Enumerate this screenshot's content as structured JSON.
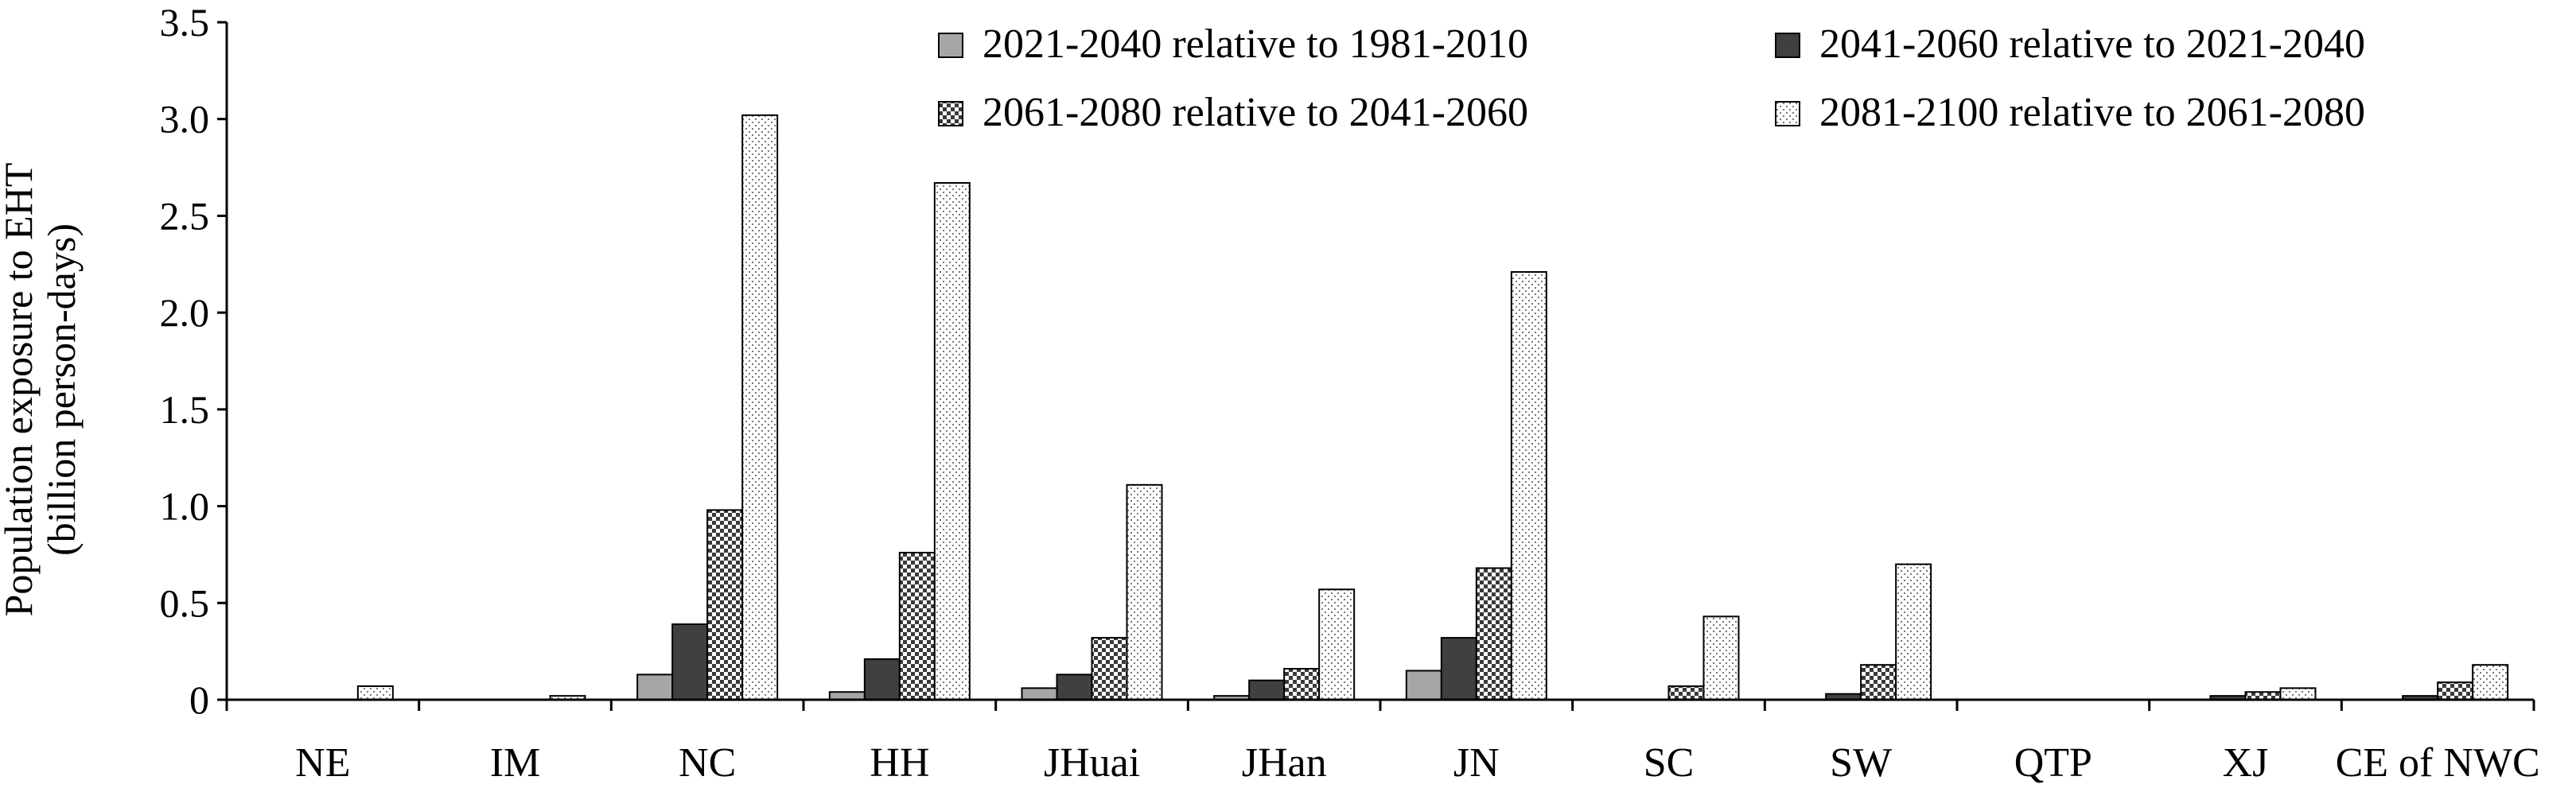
{
  "chart_data": {
    "type": "bar",
    "ylabel_line1": "Population exposure to EHT",
    "ylabel_line2": "(billion person-days)",
    "ylim": [
      0,
      3.5
    ],
    "yticks": [
      "0",
      "0.5",
      "1.0",
      "1.5",
      "2.0",
      "2.5",
      "3.0",
      "3.5"
    ],
    "categories": [
      "NE",
      "IM",
      "NC",
      "HH",
      "JHuai",
      "JHan",
      "JN",
      "SC",
      "SW",
      "QTP",
      "XJ",
      "CE of NWC"
    ],
    "legend_position": "top-right",
    "series": [
      {
        "name": "2021-2040 relative to 1981-2010",
        "pattern": "gray",
        "values": [
          0.0,
          0.0,
          0.13,
          0.04,
          0.06,
          0.02,
          0.15,
          0.0,
          0.0,
          0.0,
          0.0,
          0.0
        ]
      },
      {
        "name": "2041-2060 relative to 2021-2040",
        "pattern": "dark",
        "values": [
          0.0,
          0.0,
          0.39,
          0.21,
          0.13,
          0.1,
          0.32,
          0.0,
          0.03,
          0.0,
          0.02,
          0.02
        ]
      },
      {
        "name": "2061-2080 relative to 2041-2060",
        "pattern": "checker",
        "values": [
          0.0,
          0.0,
          0.98,
          0.76,
          0.32,
          0.16,
          0.68,
          0.07,
          0.18,
          0.0,
          0.04,
          0.09
        ]
      },
      {
        "name": "2081-2100 relative to 2061-2080",
        "pattern": "dots",
        "values": [
          0.07,
          0.02,
          3.02,
          2.67,
          1.11,
          0.57,
          2.21,
          0.43,
          0.7,
          0.0,
          0.06,
          0.18
        ]
      }
    ]
  },
  "colors": {
    "gray": "#a6a6a6",
    "dark": "#404040",
    "axis": "#000000"
  }
}
